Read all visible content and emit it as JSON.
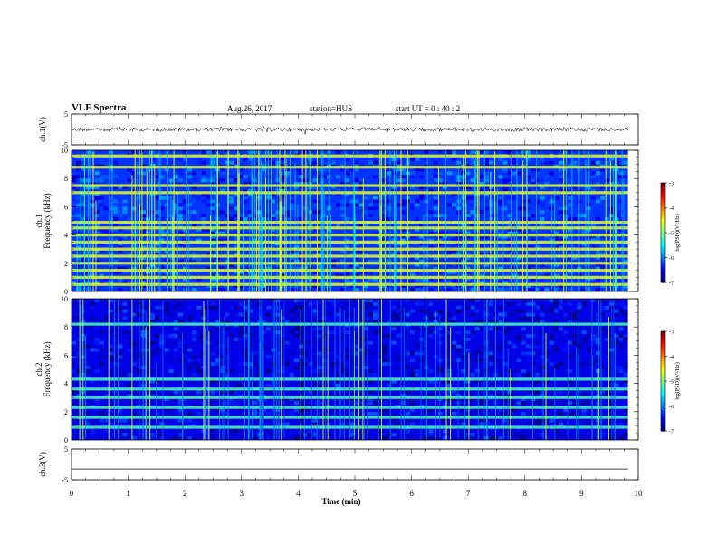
{
  "header": {
    "title": "VLF Spectra",
    "date": "Aug.26, 2017",
    "station": "station=HUS",
    "start": "start UT =  0 : 40 : 2"
  },
  "chart_data": [
    {
      "type": "line",
      "name": "ch1-waveform",
      "ylabel": "ch.1(V)",
      "ylim": [
        -5,
        5
      ],
      "yticks": [
        "5",
        "-5"
      ],
      "xlim": [
        0,
        10
      ],
      "baseline": 0,
      "x_end": 9.82,
      "trace": "noisy signal near 0 V"
    },
    {
      "type": "heatmap",
      "name": "ch1-spectrogram",
      "ylabel": "ch.1\nFrequency (kHz)",
      "xlim": [
        0,
        10
      ],
      "ylim": [
        0,
        10
      ],
      "yticks": [
        "0",
        "2",
        "4",
        "6",
        "8",
        "10"
      ],
      "x_end": 9.82,
      "colorbar": {
        "label": "log(PSD)(V²/Hz)",
        "range": [
          -7,
          -3
        ],
        "ticks": [
          "-3",
          "-4",
          "-5",
          "-6",
          "-7"
        ]
      },
      "horizontal_bands_khz": [
        0.5,
        1.0,
        1.5,
        2.0,
        2.5,
        3.0,
        3.5,
        4.0,
        4.5,
        4.9,
        7.0,
        7.5,
        8.8,
        9.6
      ],
      "background_level": -6.3,
      "band_level": -4.6
    },
    {
      "type": "heatmap",
      "name": "ch2-spectrogram",
      "ylabel": "ch.2\nFrequency (kHz)",
      "xlim": [
        0,
        10
      ],
      "ylim": [
        0,
        10
      ],
      "yticks": [
        "0",
        "2",
        "4",
        "6",
        "8",
        "10"
      ],
      "x_end": 9.82,
      "colorbar": {
        "label": "log(PSD)(V²/Hz)",
        "range": [
          -7,
          -3
        ],
        "ticks": [
          "-3",
          "-4",
          "-5",
          "-6",
          "-7"
        ]
      },
      "horizontal_bands_khz": [
        0.9,
        1.6,
        2.3,
        3.0,
        3.6,
        4.3,
        8.2
      ],
      "background_level": -6.6,
      "band_level": -5.2
    },
    {
      "type": "line",
      "name": "ch3-waveform",
      "ylabel": "ch.3(V)",
      "ylim": [
        -5,
        5
      ],
      "yticks": [
        "5",
        "-5"
      ],
      "xlim": [
        0,
        10
      ],
      "baseline": -1.5,
      "x_end": 9.82,
      "trace": "flat line"
    }
  ],
  "xaxis": {
    "label": "Time (min)",
    "ticks": [
      "0",
      "1",
      "2",
      "3",
      "4",
      "5",
      "6",
      "7",
      "8",
      "9",
      "10"
    ]
  }
}
